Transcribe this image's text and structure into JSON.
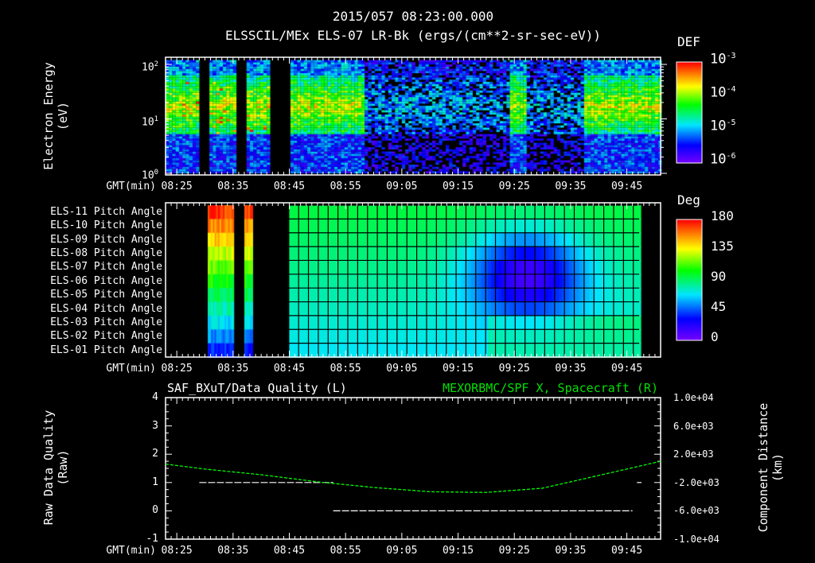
{
  "header": {
    "timestamp": "2015/057 08:23:00.000",
    "title": "ELSSCIL/MEx ELS-07 LR-Bk  (ergs/(cm**2-sr-sec-eV))"
  },
  "chart_data": [
    {
      "type": "heatmap",
      "name": "electron-energy-spectrogram",
      "ylabel": "Electron Energy",
      "yunit": "(eV)",
      "yscale": "log",
      "ylim": [
        1,
        150
      ],
      "yticks": [
        "10^0",
        "10^1",
        "10^2"
      ],
      "xlabel": "GMT(min)",
      "xlim_min": [
        503,
        591
      ],
      "xticks": [
        "08:25",
        "08:35",
        "08:45",
        "08:55",
        "09:05",
        "09:15",
        "09:25",
        "09:35",
        "09:45"
      ],
      "colorbar": {
        "label": "DEF",
        "scale": "log",
        "range": [
          1e-06,
          0.001
        ],
        "ticks": [
          "10^-3",
          "10^-4",
          "10^-5",
          "10^-6"
        ]
      },
      "data_gaps_min": [
        [
          508.9,
          510.5
        ],
        [
          515.2,
          517.0
        ],
        [
          521.1,
          524.9
        ]
      ],
      "enhanced_intervals_min": [
        [
          503,
          538
        ],
        [
          564,
          567
        ],
        [
          577,
          591
        ]
      ]
    },
    {
      "type": "heatmap",
      "name": "pitch-angle",
      "rows": [
        "ELS-11 Pitch Angle",
        "ELS-10 Pitch Angle",
        "ELS-09 Pitch Angle",
        "ELS-08 Pitch Angle",
        "ELS-07 Pitch Angle",
        "ELS-06 Pitch Angle",
        "ELS-05 Pitch Angle",
        "ELS-04 Pitch Angle",
        "ELS-03 Pitch Angle",
        "ELS-02 Pitch Angle",
        "ELS-01 Pitch Angle"
      ],
      "xlabel": "GMT(min)",
      "xticks": [
        "08:25",
        "08:35",
        "08:45",
        "08:55",
        "09:05",
        "09:15",
        "09:25",
        "09:35",
        "09:45"
      ],
      "colorbar": {
        "label": "Deg",
        "range": [
          0,
          180
        ],
        "ticks": [
          "180",
          "135",
          "90",
          "45",
          "0"
        ]
      },
      "data_intervals_min": [
        [
          510.5,
          518.2
        ],
        [
          524.9,
          587.2
        ]
      ],
      "min_pitch_center_min": 567,
      "min_pitch_deg": 25
    },
    {
      "type": "line",
      "name": "data-quality-and-position",
      "title_left": "SAF_BXuT/Data Quality (L)",
      "title_right": "MEXORBMC/SPF X, Spacecraft (R)",
      "ylabel_left": "Raw  Data  Quality",
      "yunit_left": "(Raw)",
      "ylabel_right": "Component  Distance",
      "yunit_right": "(km)",
      "ylim_left": [
        -1,
        4
      ],
      "yticks_left": [
        "4",
        "3",
        "2",
        "1",
        "0",
        "-1"
      ],
      "ylim_right": [
        -10000,
        10000
      ],
      "yticks_right": [
        "1.0e+04",
        "6.0e+03",
        "2.0e+03",
        "-2.0e+03",
        "-6.0e+03",
        "-1.0e+04"
      ],
      "xlabel": "GMT(min)",
      "xticks": [
        "08:25",
        "08:35",
        "08:45",
        "08:55",
        "09:05",
        "09:15",
        "09:25",
        "09:35",
        "09:45"
      ],
      "series": [
        {
          "name": "Data Quality",
          "color": "#ffffff",
          "segments": [
            {
              "x": [
                509,
                532.8
              ],
              "y": 1
            },
            {
              "x": [
                532.8,
                586
              ],
              "y": 0
            },
            {
              "x": [
                586.8,
                587.6
              ],
              "y": 1
            }
          ]
        },
        {
          "name": "SPF X",
          "color": "#00ff00",
          "x_min": [
            503,
            510,
            520,
            530,
            540,
            550,
            560,
            570,
            580,
            591
          ],
          "y_km": [
            600,
            -100,
            -900,
            -1900,
            -2700,
            -3300,
            -3400,
            -2800,
            -1000,
            1000
          ]
        }
      ]
    }
  ]
}
